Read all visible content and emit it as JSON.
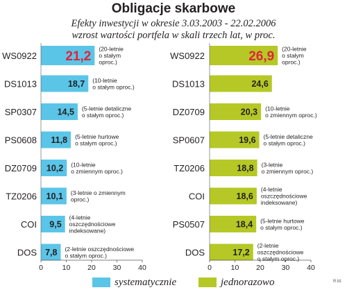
{
  "title": "Obligacje skarbowe",
  "subtitle_line1": "Efekty inwestycji  w okresie 3.03.2003 - 22.02.2006",
  "subtitle_line2": "wzrost wartości portfela w skali trzech lat, w proc.",
  "credit": "R.M.",
  "legend": [
    {
      "label": "systematycznie",
      "color": "#5bc5e8"
    },
    {
      "label": "jednorazowo",
      "color": "#b5c826"
    }
  ],
  "colors": {
    "highlight_value": "#e0243a",
    "text": "#231f20",
    "axis": "#555555"
  },
  "chart_data": [
    {
      "type": "bar",
      "orientation": "horizontal",
      "series_name": "systematycznie",
      "color": "#5bc5e8",
      "categories": [
        "WS0922",
        "DS1013",
        "SP0307",
        "PS0608",
        "DZ0709",
        "TZ0206",
        "COI",
        "DOS"
      ],
      "values": [
        21.2,
        18.7,
        14.5,
        11.8,
        10.2,
        10.1,
        9.5,
        7.8
      ],
      "value_labels": [
        "21,2",
        "18,7",
        "14,5",
        "11,8",
        "10,2",
        "10,1",
        "9,5",
        "7,8"
      ],
      "annotations": [
        [
          "(20-letnie",
          "o stałym",
          "oproc.)"
        ],
        [
          "(10-letnie",
          "o stałym oproc.)"
        ],
        [
          "(5-letnie detaliczne",
          "o stałym oproc.)"
        ],
        [
          "(5-letnie hurtowe",
          "o stałym oproc.)"
        ],
        [
          "(10-letnie",
          "o zmiennym oproc.)"
        ],
        [
          "(3-letnie o zmiennym",
          "oproc.)"
        ],
        [
          "(4-letnie",
          "oszczędnościowe",
          "indeksowane)"
        ],
        [
          "(2-letnie oszczędnościowe",
          "o stałym oproc.)"
        ]
      ],
      "xlim": [
        0,
        40
      ],
      "ticks": [
        "0",
        "10",
        "20",
        "30",
        "40"
      ]
    },
    {
      "type": "bar",
      "orientation": "horizontal",
      "series_name": "jednorazowo",
      "color": "#b5c826",
      "categories": [
        "WS0922",
        "DS1013",
        "DZ0709",
        "SP0607",
        "TZ0206",
        "COI",
        "PS0507",
        "DOS"
      ],
      "values": [
        26.9,
        24.6,
        20.3,
        19.6,
        18.8,
        18.6,
        18.4,
        17.2
      ],
      "value_labels": [
        "26,9",
        "24,6",
        "20,3",
        "19,6",
        "18,8",
        "18,6",
        "18,4",
        "17,2"
      ],
      "annotations": [
        [
          "(20-letnie",
          "o stałym",
          "oproc.)"
        ],
        [],
        [
          "(10-letnie",
          "o zmiennym oproc.)"
        ],
        [
          "(5-letnie detaliczne",
          "o stałym oproc.)"
        ],
        [
          "(3-letnie",
          "o zmiennym oproc.)"
        ],
        [
          "(4-letnie",
          "oszczędnościowe",
          "indeksowane)"
        ],
        [
          "(5-letnie hurtowe",
          "o stałym oproc.)"
        ],
        [
          "(2-letnie",
          "oszczędnościowe",
          "o stałym oproc.)"
        ]
      ],
      "xlim": [
        0,
        40
      ],
      "ticks": [
        "0",
        "10",
        "20",
        "30",
        "40"
      ]
    }
  ]
}
